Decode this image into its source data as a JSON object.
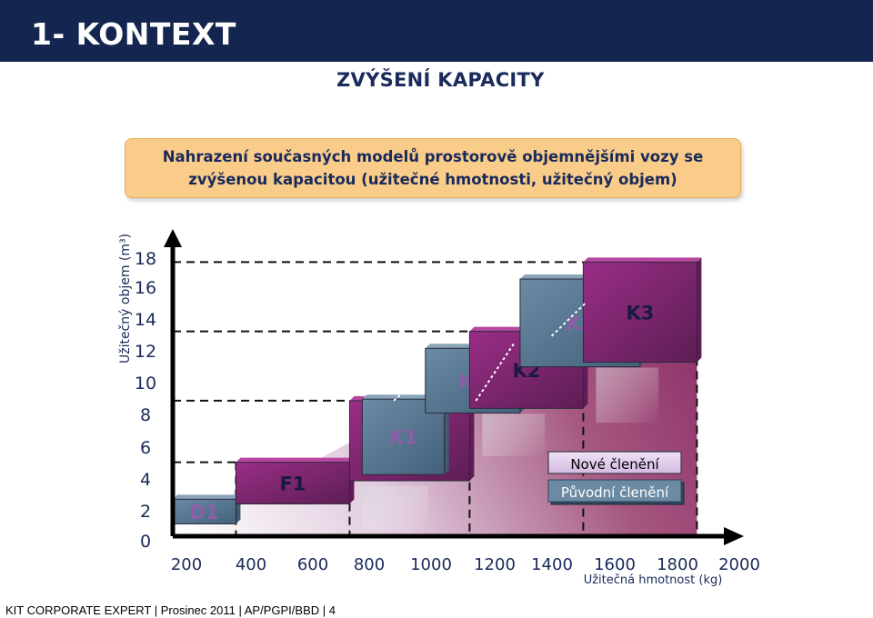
{
  "header": {
    "title": "1- KONTEXT"
  },
  "subtitle": "ZVÝŠENÍ KAPACITY",
  "callout": {
    "line1": "Nahrazení současných modelů prostorově objemnějšími vozy se",
    "line2": "zvýšenou kapacitou (užitečné hmotnosti, užitečný objem)"
  },
  "footer": {
    "text": "KIT CORPORATE EXPERT | Prosinec 2011 | AP/PGPI/BBD | 4"
  },
  "chart_data": {
    "type": "range",
    "ylabel": "Užitečný objem (m³)",
    "xlabel": "Užitečná hmotnost (kg)",
    "xlim": [
      200,
      2000
    ],
    "ylim": [
      0,
      18
    ],
    "x_ticks": [
      "200",
      "400",
      "600",
      "800",
      "1000",
      "1200",
      "1400",
      "1600",
      "1800",
      "2000"
    ],
    "y_ticks": [
      "0",
      "2",
      "4",
      "6",
      "8",
      "10",
      "12",
      "14",
      "16",
      "18"
    ],
    "legend": {
      "placement": "right",
      "items": [
        {
          "name": "Nové členění"
        },
        {
          "name": "Původní členění"
        }
      ]
    },
    "series": [
      {
        "key": "puvodni",
        "color": "#5d7d98",
        "segments": [
          {
            "label": "D1",
            "x0": 200,
            "x1": 400,
            "y0": 0.8,
            "y1": 2.4
          },
          {
            "label": "F1",
            "x0": 400,
            "x1": 650,
            "y0": 2.1,
            "y1": 4.1
          },
          {
            "label": "K1",
            "x0": 800,
            "x1": 1060,
            "y0": 4.0,
            "y1": 8.9
          },
          {
            "label": "K2",
            "x0": 1000,
            "x1": 1300,
            "y0": 8.0,
            "y1": 12.2
          },
          {
            "label": "K3",
            "x0": 1300,
            "x1": 1680,
            "y0": 11.0,
            "y1": 16.7
          }
        ]
      },
      {
        "key": "nove",
        "color": "#8b2a78",
        "segments": [
          {
            "label": "F1",
            "x0": 400,
            "x1": 760,
            "y0": 2.1,
            "y1": 4.8
          },
          {
            "label": "K1",
            "x0": 760,
            "x1": 1140,
            "y0": 3.6,
            "y1": 8.8
          },
          {
            "label": "K2",
            "x0": 1140,
            "x1": 1500,
            "y0": 8.3,
            "y1": 13.3
          },
          {
            "label": "K3",
            "x0": 1500,
            "x1": 1860,
            "y0": 11.3,
            "y1": 17.8
          }
        ]
      }
    ]
  }
}
